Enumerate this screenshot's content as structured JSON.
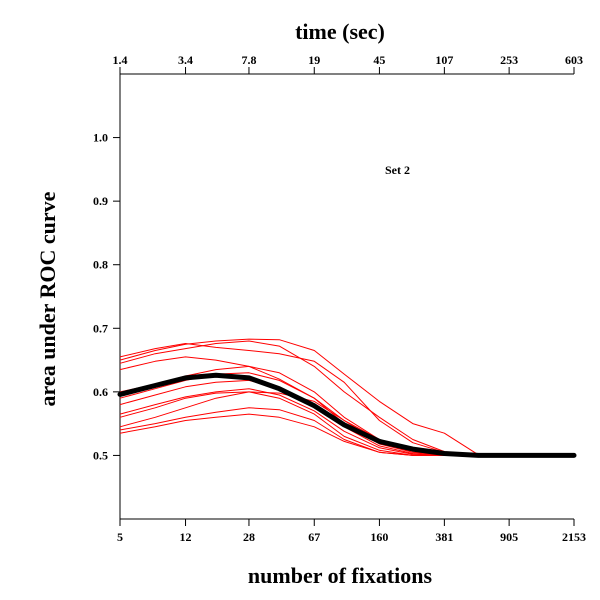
{
  "chart_data": {
    "type": "line",
    "title": "",
    "xlabel": "number of fixations",
    "x2label": "time (sec)",
    "ylabel": "area under ROC curve",
    "annotation": "Set 2",
    "xscale": "log",
    "xlim": [
      5,
      2153
    ],
    "ylim": [
      0.4,
      1.1
    ],
    "x_ticks": [
      5,
      12,
      28,
      67,
      160,
      381,
      905,
      2153
    ],
    "x_tick_labels": [
      "5",
      "12",
      "28",
      "67",
      "160",
      "381",
      "905",
      "2153"
    ],
    "x2_ticks": [
      5,
      12,
      28,
      67,
      160,
      381,
      905,
      2153
    ],
    "x2_tick_labels": [
      "1.4",
      "3.4",
      "7.8",
      "19",
      "45",
      "107",
      "253",
      "603"
    ],
    "y_ticks": [
      0.5,
      0.6,
      0.7,
      0.8,
      0.9,
      1.0
    ],
    "y_tick_labels": [
      "0.5",
      "0.6",
      "0.7",
      "0.8",
      "0.9",
      "1.0"
    ],
    "grid": false,
    "colors": {
      "individual": "#ff0000",
      "mean": "#000000"
    },
    "series": [
      {
        "style": "thin-red",
        "x": [
          5,
          8,
          12,
          18,
          28,
          42,
          67,
          100,
          160,
          250,
          381,
          600,
          905,
          1400,
          2153
        ],
        "y": [
          0.65,
          0.665,
          0.675,
          0.68,
          0.683,
          0.682,
          0.665,
          0.628,
          0.585,
          0.55,
          0.535,
          0.501,
          0.5,
          0.5,
          0.5
        ]
      },
      {
        "style": "thin-red",
        "x": [
          5,
          8,
          12,
          18,
          28,
          42,
          67,
          100,
          160,
          250,
          381,
          600,
          905,
          1400,
          2153
        ],
        "y": [
          0.655,
          0.668,
          0.676,
          0.67,
          0.665,
          0.66,
          0.648,
          0.615,
          0.555,
          0.52,
          0.505,
          0.5,
          0.501,
          0.5,
          0.5
        ]
      },
      {
        "style": "thin-red",
        "x": [
          5,
          8,
          12,
          18,
          28,
          42,
          67,
          100,
          160,
          250,
          381,
          600,
          905,
          1400,
          2153
        ],
        "y": [
          0.645,
          0.66,
          0.668,
          0.676,
          0.68,
          0.672,
          0.64,
          0.6,
          0.56,
          0.525,
          0.506,
          0.5,
          0.5,
          0.5,
          0.5
        ]
      },
      {
        "style": "thin-red",
        "x": [
          5,
          8,
          12,
          18,
          28,
          42,
          67,
          100,
          160,
          250,
          381,
          600,
          905,
          1400,
          2153
        ],
        "y": [
          0.635,
          0.648,
          0.655,
          0.65,
          0.64,
          0.62,
          0.59,
          0.555,
          0.525,
          0.51,
          0.503,
          0.5,
          0.5,
          0.5,
          0.5
        ]
      },
      {
        "style": "thin-red",
        "x": [
          5,
          8,
          12,
          18,
          28,
          42,
          67,
          100,
          160,
          250,
          381,
          600,
          905,
          1400,
          2153
        ],
        "y": [
          0.6,
          0.612,
          0.625,
          0.635,
          0.64,
          0.63,
          0.6,
          0.56,
          0.525,
          0.508,
          0.502,
          0.5,
          0.5,
          0.5,
          0.5
        ]
      },
      {
        "style": "thin-red",
        "x": [
          5,
          8,
          12,
          18,
          28,
          42,
          67,
          100,
          160,
          250,
          381,
          600,
          905,
          1400,
          2153
        ],
        "y": [
          0.59,
          0.605,
          0.618,
          0.628,
          0.63,
          0.618,
          0.59,
          0.55,
          0.518,
          0.505,
          0.501,
          0.5,
          0.5,
          0.5,
          0.5
        ]
      },
      {
        "style": "thin-red",
        "x": [
          5,
          8,
          12,
          18,
          28,
          42,
          67,
          100,
          160,
          250,
          381,
          600,
          905,
          1400,
          2153
        ],
        "y": [
          0.58,
          0.595,
          0.608,
          0.615,
          0.618,
          0.605,
          0.58,
          0.545,
          0.515,
          0.503,
          0.5,
          0.5,
          0.5,
          0.5,
          0.5
        ]
      },
      {
        "style": "thin-red",
        "x": [
          5,
          8,
          12,
          18,
          28,
          42,
          67,
          100,
          160,
          250,
          381,
          600,
          905,
          1400,
          2153
        ],
        "y": [
          0.565,
          0.58,
          0.592,
          0.6,
          0.605,
          0.595,
          0.57,
          0.538,
          0.512,
          0.502,
          0.5,
          0.5,
          0.5,
          0.5,
          0.5
        ]
      },
      {
        "style": "thin-red",
        "x": [
          5,
          8,
          12,
          18,
          28,
          42,
          67,
          100,
          160,
          250,
          381,
          600,
          905,
          1400,
          2153
        ],
        "y": [
          0.56,
          0.575,
          0.59,
          0.598,
          0.6,
          0.59,
          0.565,
          0.53,
          0.508,
          0.5,
          0.5,
          0.5,
          0.5,
          0.5,
          0.5
        ]
      },
      {
        "style": "thin-red",
        "x": [
          5,
          8,
          12,
          18,
          28,
          42,
          67,
          100,
          160,
          250,
          381,
          600,
          905,
          1400,
          2153
        ],
        "y": [
          0.545,
          0.56,
          0.575,
          0.59,
          0.6,
          0.598,
          0.585,
          0.555,
          0.52,
          0.505,
          0.5,
          0.5,
          0.5,
          0.5,
          0.5
        ]
      },
      {
        "style": "thin-red",
        "x": [
          5,
          8,
          12,
          18,
          28,
          42,
          67,
          100,
          160,
          250,
          381,
          600,
          905,
          1400,
          2153
        ],
        "y": [
          0.54,
          0.55,
          0.56,
          0.568,
          0.575,
          0.572,
          0.555,
          0.525,
          0.505,
          0.5,
          0.5,
          0.5,
          0.5,
          0.5,
          0.5
        ]
      },
      {
        "style": "thin-red",
        "x": [
          5,
          8,
          12,
          18,
          28,
          42,
          67,
          100,
          160,
          250,
          381,
          600,
          905,
          1400,
          2153
        ],
        "y": [
          0.535,
          0.545,
          0.555,
          0.56,
          0.565,
          0.56,
          0.545,
          0.522,
          0.505,
          0.5,
          0.5,
          0.5,
          0.5,
          0.5,
          0.5
        ]
      },
      {
        "style": "thick-mean",
        "x": [
          5,
          8,
          12,
          18,
          28,
          42,
          67,
          100,
          160,
          250,
          381,
          600,
          905,
          1400,
          2153
        ],
        "y": [
          0.596,
          0.61,
          0.622,
          0.626,
          0.622,
          0.605,
          0.578,
          0.548,
          0.522,
          0.51,
          0.503,
          0.5,
          0.5,
          0.5,
          0.5
        ]
      }
    ]
  }
}
